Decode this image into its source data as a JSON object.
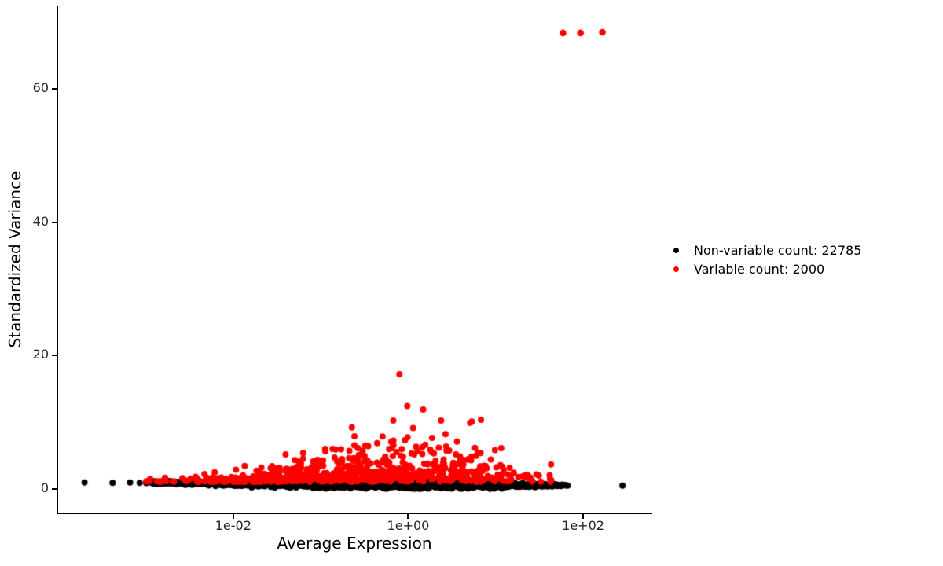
{
  "chart_data": {
    "type": "scatter",
    "title": "",
    "xlabel": "Average Expression",
    "ylabel": "Standardized Variance",
    "x_scale": "log10",
    "grid": false,
    "legend_position": "right",
    "x_domain_log10": [
      -4.02,
      2.79
    ],
    "y_domain": [
      -3.55,
      72.4
    ],
    "x_ticks": [
      {
        "label": "1e-02",
        "value": 0.01,
        "log10": -2
      },
      {
        "label": "1e+00",
        "value": 1,
        "log10": 0
      },
      {
        "label": "1e+02",
        "value": 100,
        "log10": 2
      }
    ],
    "y_ticks": [
      {
        "label": "0",
        "value": 0
      },
      {
        "label": "20",
        "value": 20
      },
      {
        "label": "40",
        "value": 40
      },
      {
        "label": "60",
        "value": 60
      }
    ],
    "series": [
      {
        "name": "non-variable",
        "label": "Non-variable count: 22785",
        "count": 22785,
        "color": "#000000"
      },
      {
        "name": "variable",
        "label": "Variable count: 2000",
        "count": 2000,
        "color": "#FF0000"
      }
    ],
    "notable_points": {
      "red_outliers": [
        {
          "x_log10": 1.77,
          "y": 68.4
        },
        {
          "x_log10": 1.97,
          "y": 68.4
        },
        {
          "x_log10": 2.22,
          "y": 68.5
        }
      ],
      "red_peak": {
        "x_log10": -0.1,
        "y": 17.2
      },
      "black_isolated_right": {
        "x_log10": 2.45,
        "y": 0.5
      },
      "black_isolated_left": [
        {
          "x_log10": -3.7,
          "y": 0.95
        },
        {
          "x_log10": -3.38,
          "y": 0.9
        },
        {
          "x_log10": -3.18,
          "y": 0.97
        },
        {
          "x_log10": -3.07,
          "y": 0.9
        }
      ]
    },
    "point_cloud_model": {
      "seed": 42,
      "point_radius_px": 4,
      "black_band": {
        "render_count": 1900,
        "x_log10_range": [
          -3.0,
          1.82
        ],
        "weights": [
          [
            -3.0,
            0.22
          ],
          [
            -2.5,
            0.45
          ],
          [
            -2.0,
            0.75
          ],
          [
            -1.0,
            1.0
          ],
          [
            0.0,
            1.0
          ],
          [
            0.9,
            1.0
          ],
          [
            1.3,
            0.5
          ],
          [
            1.82,
            0.25
          ]
        ],
        "mean_sd": [
          [
            -3.0,
            0.95,
            0.08
          ],
          [
            -2.0,
            0.85,
            0.18
          ],
          [
            -1.0,
            0.75,
            0.28
          ],
          [
            0.0,
            0.72,
            0.33
          ],
          [
            0.8,
            0.65,
            0.28
          ],
          [
            1.3,
            0.55,
            0.15
          ],
          [
            1.82,
            0.55,
            0.1
          ]
        ],
        "y_clip": [
          0.05,
          1.9
        ]
      },
      "red_cloud": {
        "render_count": 700,
        "x_log10_range": [
          -3.0,
          1.68
        ],
        "weights": [
          [
            -3.0,
            0.08
          ],
          [
            -2.5,
            0.22
          ],
          [
            -2.0,
            0.5
          ],
          [
            -1.2,
            0.95
          ],
          [
            -0.5,
            1.0
          ],
          [
            0.2,
            0.9
          ],
          [
            0.7,
            0.7
          ],
          [
            1.1,
            0.35
          ],
          [
            1.45,
            0.15
          ],
          [
            1.68,
            0.07
          ]
        ],
        "base": 1.05,
        "envelope": [
          [
            -3.0,
            1.9
          ],
          [
            -2.5,
            2.4
          ],
          [
            -2.0,
            3.2
          ],
          [
            -1.5,
            5.5
          ],
          [
            -1.0,
            9.0
          ],
          [
            -0.5,
            13.5
          ],
          [
            -0.1,
            17.2
          ],
          [
            0.3,
            13.0
          ],
          [
            0.7,
            13.5
          ],
          [
            1.0,
            10.0
          ],
          [
            1.3,
            7.0
          ],
          [
            1.68,
            5.0
          ]
        ],
        "shape": "truncated-exponential",
        "mean_fraction_of_envelope": 0.18
      }
    }
  }
}
